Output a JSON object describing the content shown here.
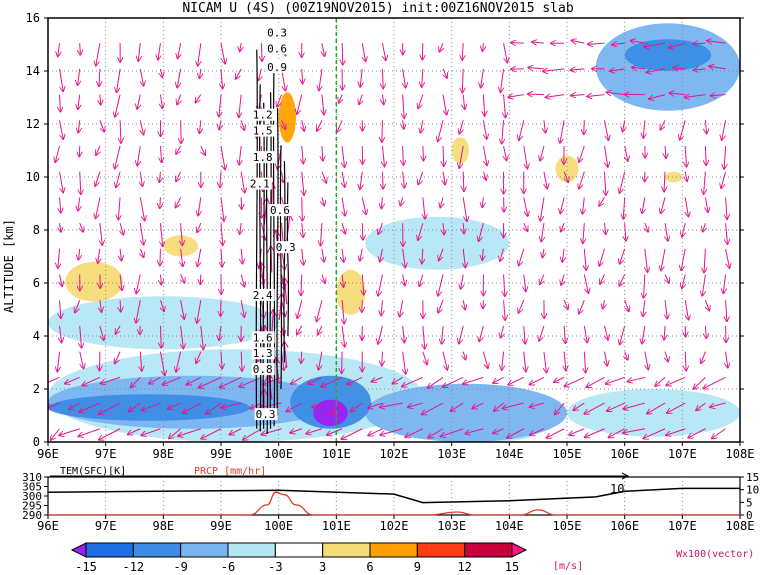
{
  "title": "NICAM U (4S) (00Z19NOV2015) init:00Z16NOV2015 slab",
  "main_panel": {
    "ylabel": "ALTITUDE [km]",
    "ylim": [
      0,
      16
    ],
    "yticks": [
      "0",
      "2",
      "4",
      "6",
      "8",
      "10",
      "12",
      "14",
      "16"
    ],
    "xlim": [
      96,
      108
    ],
    "xticks": [
      "96E",
      "97E",
      "98E",
      "99E",
      "100E",
      "101E",
      "102E",
      "103E",
      "104E",
      "105E",
      "106E",
      "107E",
      "108E"
    ],
    "reference_line_lon": 101,
    "contour_labels": [
      "0.3",
      "0.6",
      "0.9",
      "1.2",
      "1.5",
      "1.8",
      "2.1",
      "0.6",
      "0.3",
      "2.4",
      "1.6",
      "1.3",
      "0.8",
      "0.3"
    ]
  },
  "bottom_panel": {
    "left_label": "TEM(SFC)[K]",
    "right_label": "PRCP [mm/hr]",
    "left_ticks": [
      "310",
      "305",
      "300",
      "295",
      "290"
    ],
    "right_ticks": [
      "15",
      "10",
      "5",
      "0"
    ],
    "annotation": "10",
    "xticks": [
      "96E",
      "97E",
      "98E",
      "99E",
      "100E",
      "101E",
      "102E",
      "103E",
      "104E",
      "105E",
      "106E",
      "107E",
      "108E"
    ]
  },
  "colorbar": {
    "labels": [
      "-15",
      "-12",
      "-9",
      "-6",
      "-3",
      "3",
      "6",
      "9",
      "12",
      "15"
    ],
    "units": "[m/s]",
    "colors": [
      "#a020f0",
      "#1e6ee6",
      "#3c8ce6",
      "#78b4f0",
      "#b4e6f5",
      "#ffffff",
      "#f5dc78",
      "#ffa000",
      "#ff3c14",
      "#c8003c",
      "#ff148c"
    ],
    "vector_label": "Wx100(vector)"
  },
  "chart_data": {
    "type": "heatmap",
    "title": "NICAM U (4S) (00Z19NOV2015) init:00Z16NOV2015 slab",
    "xlabel": "",
    "ylabel": "ALTITUDE [km]",
    "xlim": [
      96,
      108
    ],
    "ylim": [
      0,
      16
    ],
    "x_ticks": [
      "96E",
      "97E",
      "98E",
      "99E",
      "100E",
      "101E",
      "102E",
      "103E",
      "104E",
      "105E",
      "106E",
      "107E",
      "108E"
    ],
    "u_wind_regions_m_per_s": [
      {
        "lon": [
          96,
          102.5
        ],
        "alt": [
          0,
          3.5
        ],
        "u": -3
      },
      {
        "lon": [
          96,
          101
        ],
        "alt": [
          0.5,
          2.5
        ],
        "u": -6
      },
      {
        "lon": [
          96,
          99.5
        ],
        "alt": [
          0.8,
          1.8
        ],
        "u": -9
      },
      {
        "lon": [
          100.2,
          101.6
        ],
        "alt": [
          0.5,
          2.5
        ],
        "u": -9
      },
      {
        "lon": [
          100.6,
          101.2
        ],
        "alt": [
          0.6,
          1.6
        ],
        "u": -15
      },
      {
        "lon": [
          101.5,
          105
        ],
        "alt": [
          0,
          2.2
        ],
        "u": -6
      },
      {
        "lon": [
          102.7,
          104.4
        ],
        "alt": [
          0,
          0.5
        ],
        "u": -3
      },
      {
        "lon": [
          105,
          108
        ],
        "alt": [
          0.2,
          2
        ],
        "u": -3
      },
      {
        "lon": [
          105.5,
          108
        ],
        "alt": [
          12.5,
          15.8
        ],
        "u": -6
      },
      {
        "lon": [
          106,
          107.5
        ],
        "alt": [
          14,
          15.2
        ],
        "u": -9
      },
      {
        "lon": [
          96,
          100
        ],
        "alt": [
          3.5,
          5.5
        ],
        "u": -3
      },
      {
        "lon": [
          101.5,
          104
        ],
        "alt": [
          6.5,
          8.5
        ],
        "u": -3
      },
      {
        "lon": [
          96.3,
          97.3
        ],
        "alt": [
          5.3,
          6.8
        ],
        "u": 3
      },
      {
        "lon": [
          98,
          98.6
        ],
        "alt": [
          7,
          7.8
        ],
        "u": 3
      },
      {
        "lon": [
          100,
          100.3
        ],
        "alt": [
          11.3,
          13.2
        ],
        "u": 6
      },
      {
        "lon": [
          101,
          101.5
        ],
        "alt": [
          4.8,
          6.5
        ],
        "u": 3
      },
      {
        "lon": [
          103,
          103.3
        ],
        "alt": [
          10.5,
          11.5
        ],
        "u": 3
      },
      {
        "lon": [
          104.8,
          105.2
        ],
        "alt": [
          9.8,
          10.8
        ],
        "u": 3
      },
      {
        "lon": [
          106.7,
          107
        ],
        "alt": [
          9.8,
          10.2
        ],
        "u": 3
      }
    ],
    "surface_temperature_K": {
      "lon": [
        96,
        100,
        102,
        102.5,
        104,
        105.5,
        106,
        107,
        108
      ],
      "values": [
        302,
        303,
        301,
        296.5,
        297.5,
        299.5,
        302.5,
        304,
        304
      ]
    },
    "precipitation_mm_per_hr": {
      "lon": [
        96,
        99.5,
        99.8,
        99.95,
        100.1,
        100.3,
        100.6,
        102.6,
        103.1,
        103.4,
        104.2,
        104.5,
        104.8,
        108
      ],
      "values": [
        0,
        0,
        4,
        9,
        8,
        4,
        0,
        0,
        1.2,
        0,
        0,
        2,
        0,
        0
      ]
    }
  }
}
